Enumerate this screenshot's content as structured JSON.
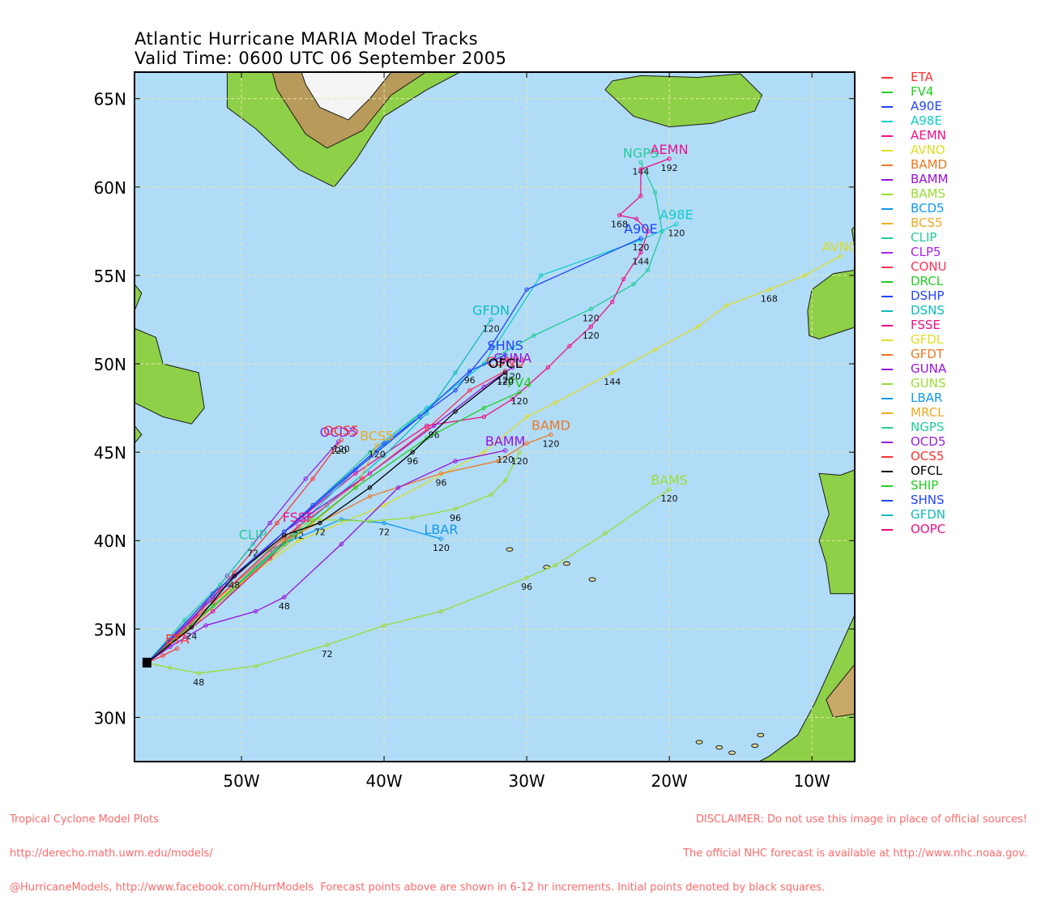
{
  "title_line1": "Atlantic Hurricane MARIA Model Tracks",
  "title_line2": "Valid Time: 0600 UTC 06 September 2005",
  "map_extent": {
    "lon": [
      -57.5,
      -7.0
    ],
    "lat": [
      27.5,
      66.5
    ]
  },
  "axis": {
    "lat_ticks": [
      {
        "v": 65,
        "label": "65N"
      },
      {
        "v": 60,
        "label": "60N"
      },
      {
        "v": 55,
        "label": "55N"
      },
      {
        "v": 50,
        "label": "50N"
      },
      {
        "v": 45,
        "label": "45N"
      },
      {
        "v": 40,
        "label": "40N"
      },
      {
        "v": 35,
        "label": "35N"
      },
      {
        "v": 30,
        "label": "30N"
      }
    ],
    "lon_ticks": [
      {
        "v": -50,
        "label": "50W"
      },
      {
        "v": -40,
        "label": "40W"
      },
      {
        "v": -30,
        "label": "30W"
      },
      {
        "v": -20,
        "label": "20W"
      },
      {
        "v": -10,
        "label": "10W"
      }
    ]
  },
  "colors": {
    "ocean": "#b0dcf8",
    "land": "#8ed048",
    "ice": "#f4f4f4",
    "grid": "#e8e8a8",
    "footer": "#ff6a6a"
  },
  "legend": [
    {
      "name": "ETA",
      "color": "#ff3333"
    },
    {
      "name": "FV4",
      "color": "#22cc22"
    },
    {
      "name": "A90E",
      "color": "#2244ff"
    },
    {
      "name": "A98E",
      "color": "#11cccc"
    },
    {
      "name": "AEMN",
      "color": "#ee1188"
    },
    {
      "name": "AVNO",
      "color": "#dddd22"
    },
    {
      "name": "BAMD",
      "color": "#ee7722"
    },
    {
      "name": "BAMM",
      "color": "#9911dd"
    },
    {
      "name": "BAMS",
      "color": "#99dd33"
    },
    {
      "name": "BCD5",
      "color": "#1199ee"
    },
    {
      "name": "BCS5",
      "color": "#eeaa22"
    },
    {
      "name": "CLIP",
      "color": "#22cc99"
    },
    {
      "name": "CLP5",
      "color": "#aa22ee"
    },
    {
      "name": "CONU",
      "color": "#ff3355"
    },
    {
      "name": "DRCL",
      "color": "#22cc22"
    },
    {
      "name": "DSHP",
      "color": "#2244ff"
    },
    {
      "name": "DSNS",
      "color": "#11bbbb"
    },
    {
      "name": "FSSE",
      "color": "#ee1188"
    },
    {
      "name": "GFDL",
      "color": "#dddd22"
    },
    {
      "name": "GFDT",
      "color": "#ee7722"
    },
    {
      "name": "GUNA",
      "color": "#9911dd"
    },
    {
      "name": "GUNS",
      "color": "#99dd33"
    },
    {
      "name": "LBAR",
      "color": "#1199ee"
    },
    {
      "name": "MRCL",
      "color": "#eeaa22"
    },
    {
      "name": "NGPS",
      "color": "#22cc99"
    },
    {
      "name": "OCD5",
      "color": "#9922dd"
    },
    {
      "name": "OCS5",
      "color": "#ff3333"
    },
    {
      "name": "OFCL",
      "color": "#000000"
    },
    {
      "name": "SHIP",
      "color": "#22cc22"
    },
    {
      "name": "SHNS",
      "color": "#2244ff"
    },
    {
      "name": "GFDN",
      "color": "#11bbbb"
    },
    {
      "name": "OOPC",
      "color": "#ee1188"
    }
  ],
  "tracks": [
    {
      "name": "BAMS",
      "color": "#99dd33",
      "label": "BAMS",
      "points": [
        [
          -56.6,
          33.1
        ],
        [
          -55,
          32.8
        ],
        [
          -53,
          32.5
        ],
        [
          -49,
          32.9
        ],
        [
          -44,
          34.1
        ],
        [
          -40,
          35.2
        ],
        [
          -36,
          36.0
        ],
        [
          -30,
          37.9
        ],
        [
          -28,
          38.6
        ],
        [
          -24.5,
          40.4
        ],
        [
          -20,
          42.9
        ]
      ],
      "times": [
        {
          "i": 2,
          "t": "48"
        },
        {
          "i": 4,
          "t": "72"
        },
        {
          "i": 7,
          "t": "96"
        },
        {
          "i": 10,
          "t": "120"
        }
      ]
    },
    {
      "name": "AVNO",
      "color": "#dddd22",
      "label": "AVNO",
      "points": [
        [
          -56.6,
          33.1
        ],
        [
          -52,
          36.5
        ],
        [
          -46,
          40
        ],
        [
          -40,
          42
        ],
        [
          -33,
          45
        ],
        [
          -30,
          47
        ],
        [
          -28,
          47.8
        ],
        [
          -24,
          49.5
        ],
        [
          -21,
          50.8
        ],
        [
          -18,
          52.1
        ],
        [
          -16,
          53.3
        ],
        [
          -13,
          54.2
        ],
        [
          -10.5,
          55.0
        ],
        [
          -8,
          56.1
        ]
      ],
      "times": [
        {
          "i": 7,
          "t": "144"
        },
        {
          "i": 11,
          "t": "168"
        }
      ]
    },
    {
      "name": "NGPS",
      "color": "#22cc99",
      "label": "NGPS",
      "points": [
        [
          -56.6,
          33.1
        ],
        [
          -53,
          36
        ],
        [
          -49,
          39
        ],
        [
          -45,
          42
        ],
        [
          -41,
          45
        ],
        [
          -37,
          47.5
        ],
        [
          -33,
          50
        ],
        [
          -29.5,
          51.6
        ],
        [
          -25.5,
          53.1
        ],
        [
          -22.5,
          54.5
        ],
        [
          -21.5,
          55.3
        ],
        [
          -20.5,
          57.5
        ],
        [
          -21,
          59.7
        ],
        [
          -22,
          61.4
        ]
      ],
      "times": [
        {
          "i": 8,
          "t": "120"
        },
        {
          "i": 13,
          "t": "144"
        }
      ]
    },
    {
      "name": "AEMN",
      "color": "#ee1188",
      "label": "AEMN",
      "points": [
        [
          -56.6,
          33.1
        ],
        [
          -52,
          36.8
        ],
        [
          -47,
          40.5
        ],
        [
          -42,
          43.8
        ],
        [
          -37,
          46.5
        ],
        [
          -33,
          47
        ],
        [
          -31,
          48
        ],
        [
          -28.5,
          49.8
        ],
        [
          -27,
          51
        ],
        [
          -25.5,
          52.1
        ],
        [
          -24,
          53.5
        ],
        [
          -23.2,
          54.8
        ],
        [
          -22,
          56.3
        ],
        [
          -21.5,
          57.5
        ],
        [
          -22.3,
          58.2
        ],
        [
          -23.5,
          58.4
        ],
        [
          -22,
          59.5
        ],
        [
          -22,
          61
        ],
        [
          -20,
          61.6
        ]
      ],
      "times": [
        {
          "i": 9,
          "t": "120"
        },
        {
          "i": 12,
          "t": "144"
        },
        {
          "i": 15,
          "t": "168"
        },
        {
          "i": 18,
          "t": "192"
        }
      ]
    },
    {
      "name": "A98E",
      "color": "#11cccc",
      "label": "A98E",
      "points": [
        [
          -56.6,
          33.1
        ],
        [
          -52,
          36
        ],
        [
          -47,
          40
        ],
        [
          -42,
          44
        ],
        [
          -37,
          47.5
        ],
        [
          -33,
          50
        ],
        [
          -29,
          55
        ],
        [
          -22,
          57
        ],
        [
          -19.5,
          57.9
        ]
      ],
      "times": [
        {
          "i": 8,
          "t": "120"
        }
      ]
    },
    {
      "name": "A90E",
      "color": "#2244ff",
      "label": "A90E",
      "points": [
        [
          -56.6,
          33.1
        ],
        [
          -51,
          37.5
        ],
        [
          -45,
          42
        ],
        [
          -40,
          45.5
        ],
        [
          -35,
          48.5
        ],
        [
          -32.5,
          51
        ],
        [
          -30,
          54.2
        ],
        [
          -22,
          57.1
        ]
      ],
      "times": [
        {
          "i": 7,
          "t": "120"
        }
      ]
    },
    {
      "name": "GFDN",
      "color": "#11bbbb",
      "label": "GFDN",
      "points": [
        [
          -56.6,
          33.1
        ],
        [
          -53,
          35.5
        ],
        [
          -49,
          38.5
        ],
        [
          -44,
          42
        ],
        [
          -40,
          44.8
        ],
        [
          -37,
          47.2
        ],
        [
          -35,
          49.5
        ],
        [
          -32.5,
          52.5
        ]
      ],
      "times": [
        {
          "i": 7,
          "t": "120"
        }
      ]
    },
    {
      "name": "OCD5",
      "color": "#9922dd",
      "label": "OCD5",
      "points": [
        [
          -56.6,
          33.1
        ],
        [
          -54,
          35
        ],
        [
          -51,
          38
        ],
        [
          -48,
          41
        ],
        [
          -45.5,
          43.5
        ],
        [
          -43.2,
          45.6
        ]
      ],
      "times": [
        {
          "i": 5,
          "t": "120"
        }
      ]
    },
    {
      "name": "OCS5",
      "color": "#ff3333",
      "label": "OCS5",
      "points": [
        [
          -56.6,
          33.1
        ],
        [
          -53.5,
          35.4
        ],
        [
          -50.5,
          38.2
        ],
        [
          -47.5,
          41
        ],
        [
          -45,
          43.5
        ],
        [
          -43,
          45.7
        ]
      ],
      "times": [
        {
          "i": 5,
          "t": "120"
        }
      ]
    },
    {
      "name": "BCS5",
      "color": "#eeaa22",
      "label": "BCS5",
      "points": [
        [
          -56.6,
          33.1
        ],
        [
          -53,
          35.5
        ],
        [
          -49,
          38.3
        ],
        [
          -45,
          41
        ],
        [
          -42,
          43
        ],
        [
          -40.5,
          45.4
        ]
      ],
      "times": [
        {
          "i": 5,
          "t": "120"
        }
      ]
    },
    {
      "name": "CLIP",
      "color": "#22cc99",
      "label": "CLIP",
      "points": [
        [
          -56.6,
          33.1
        ],
        [
          -54,
          35.5
        ],
        [
          -51.5,
          37.5
        ],
        [
          -49.2,
          39.8
        ]
      ],
      "times": [
        {
          "i": 3,
          "t": "72"
        }
      ]
    },
    {
      "name": "FSSE",
      "color": "#ee1188",
      "label": "FSSE",
      "points": [
        [
          -56.6,
          33.1
        ],
        [
          -52,
          36
        ],
        [
          -48,
          39
        ],
        [
          -46,
          40.8
        ]
      ],
      "times": [
        {
          "i": 3,
          "t": "72"
        }
      ]
    },
    {
      "name": "LBAR",
      "color": "#1199ee",
      "label": "LBAR",
      "points": [
        [
          -56.6,
          33.1
        ],
        [
          -52,
          36.5
        ],
        [
          -48,
          39.5
        ],
        [
          -43,
          41.2
        ],
        [
          -40,
          41
        ],
        [
          -36,
          40.1
        ]
      ],
      "times": [
        {
          "i": 4,
          "t": "72"
        },
        {
          "i": 5,
          "t": "120"
        }
      ]
    },
    {
      "name": "BAMD",
      "color": "#ee7722",
      "label": "BAMD",
      "points": [
        [
          -56.6,
          33.1
        ],
        [
          -52,
          36.5
        ],
        [
          -47,
          40
        ],
        [
          -41,
          42.5
        ],
        [
          -36,
          43.8
        ],
        [
          -32,
          44.5
        ],
        [
          -30,
          45.5
        ],
        [
          -28.3,
          46
        ]
      ],
      "times": [
        {
          "i": 4,
          "t": "96"
        },
        {
          "i": 7,
          "t": "120"
        }
      ]
    },
    {
      "name": "BAMM",
      "color": "#9911dd",
      "label": "BAMM",
      "points": [
        [
          -56.6,
          33.1
        ],
        [
          -55,
          34
        ],
        [
          -52.5,
          35.2
        ],
        [
          -49,
          36
        ],
        [
          -47,
          36.8
        ],
        [
          -43,
          39.8
        ],
        [
          -39,
          43
        ],
        [
          -35,
          44.5
        ],
        [
          -31.5,
          45.1
        ]
      ],
      "times": [
        {
          "i": 4,
          "t": "48"
        },
        {
          "i": 8,
          "t": "120"
        }
      ]
    },
    {
      "name": "GUNS",
      "color": "#99dd33",
      "label": "",
      "points": [
        [
          -56.6,
          33.1
        ],
        [
          -53,
          36
        ],
        [
          -49,
          39
        ],
        [
          -45,
          41.2
        ],
        [
          -41,
          41.1
        ],
        [
          -38,
          41.3
        ],
        [
          -35,
          41.8
        ],
        [
          -32.5,
          42.6
        ],
        [
          -31.5,
          43.4
        ],
        [
          -30.5,
          45
        ]
      ],
      "times": [
        {
          "i": 6,
          "t": "96"
        },
        {
          "i": 9,
          "t": "120"
        }
      ]
    },
    {
      "name": "GUNA",
      "color": "#9911dd",
      "label": "GUNA",
      "points": [
        [
          -56.6,
          33.1
        ],
        [
          -52,
          36.8
        ],
        [
          -47,
          40.5
        ],
        [
          -41,
          43.8
        ],
        [
          -36.5,
          46.5
        ],
        [
          -33,
          48.7
        ],
        [
          -31,
          49.8
        ]
      ],
      "times": [
        {
          "i": 4,
          "t": "96"
        },
        {
          "i": 6,
          "t": "120"
        }
      ]
    },
    {
      "name": "CONU",
      "color": "#ff3355",
      "label": "CONU",
      "points": [
        [
          -56.6,
          33.1
        ],
        [
          -52,
          36.5
        ],
        [
          -47,
          40.2
        ],
        [
          -41.5,
          43.5
        ],
        [
          -37,
          46.3
        ],
        [
          -34,
          48.5
        ],
        [
          -31.5,
          49.6
        ]
      ],
      "times": [
        {
          "i": 6,
          "t": "120"
        }
      ]
    },
    {
      "name": "FV4",
      "color": "#22cc22",
      "label": "FV4",
      "points": [
        [
          -56.6,
          33.1
        ],
        [
          -52,
          36.3
        ],
        [
          -47,
          39.8
        ],
        [
          -42,
          43
        ],
        [
          -37,
          45.8
        ],
        [
          -33,
          47.5
        ],
        [
          -30.5,
          48.4
        ]
      ],
      "times": [
        {
          "i": 6,
          "t": "120"
        }
      ]
    },
    {
      "name": "SHNS",
      "color": "#2244ff",
      "label": "SHNS",
      "points": [
        [
          -56.6,
          33.1
        ],
        [
          -52,
          37
        ],
        [
          -47,
          40.5
        ],
        [
          -42,
          44
        ],
        [
          -37.5,
          47
        ],
        [
          -34,
          49.6
        ],
        [
          -31.5,
          50.5
        ]
      ],
      "times": [
        {
          "i": 5,
          "t": "96"
        }
      ]
    },
    {
      "name": "OFCL",
      "color": "#000000",
      "label": "OFCL",
      "points": [
        [
          -56.6,
          33.1
        ],
        [
          -53.5,
          35.1
        ],
        [
          -50.5,
          38
        ],
        [
          -47,
          40.3
        ],
        [
          -44.5,
          41
        ],
        [
          -41,
          43
        ],
        [
          -38,
          45
        ],
        [
          -35,
          47.3
        ],
        [
          -31.5,
          49.5
        ]
      ],
      "times": [
        {
          "i": 1,
          "t": "24"
        },
        {
          "i": 2,
          "t": "48"
        },
        {
          "i": 4,
          "t": "72"
        },
        {
          "i": 6,
          "t": "96"
        },
        {
          "i": 8,
          "t": "120"
        }
      ]
    },
    {
      "name": "ETA",
      "color": "#ff3333",
      "label": "ETA",
      "points": [
        [
          -56.6,
          33.1
        ],
        [
          -55.5,
          33.5
        ],
        [
          -54.5,
          33.9
        ]
      ],
      "times": []
    }
  ],
  "footer_left": [
    "Tropical Cyclone Model Plots",
    "http://derecho.math.uwm.edu/models/",
    "@HurricaneModels, http://www.facebook.com/HurrModels  Forecast points above are shown in 6-12 hr increments. Initial points denoted by black squares."
  ],
  "footer_right": [
    "DISCLAIMER: Do not use this image in place of official sources!",
    "The official NHC forecast is available at http://www.nhc.noaa.gov.",
    ""
  ]
}
